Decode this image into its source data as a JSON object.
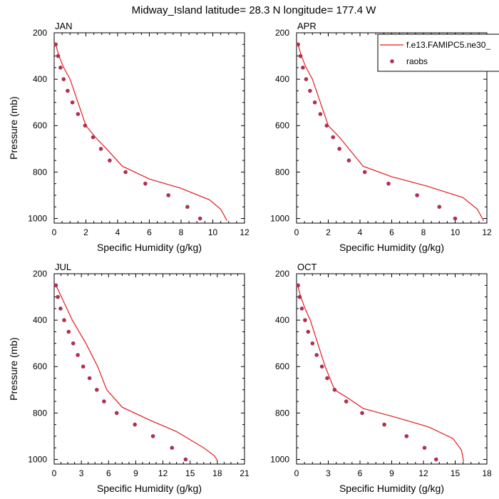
{
  "title": "Midway_Island  latitude= 28.3 N longitude= 177.4 W",
  "legend": {
    "model_label": "f.e13.FAMIPC5.ne30_",
    "obs_label": "raobs",
    "model_color": "#e41a1c",
    "obs_color": "#b03050"
  },
  "chart_data": [
    {
      "type": "line+scatter",
      "title": "JAN",
      "xlabel": "Specific Humidity (g/kg)",
      "ylabel": "Pressure (mb)",
      "xlim": [
        0,
        12
      ],
      "ylim": [
        1020,
        200
      ],
      "xticks": [
        0,
        2,
        4,
        6,
        8,
        10,
        12
      ],
      "yticks": [
        200,
        400,
        600,
        800,
        1000
      ],
      "series": [
        {
          "name": "f.e13.FAMIPC5.ne30_",
          "kind": "line",
          "x": [
            0.1,
            0.3,
            0.6,
            1.0,
            1.5,
            2.0,
            2.6,
            3.3,
            4.3,
            6.0,
            8.0,
            9.8,
            10.5,
            10.9
          ],
          "y": [
            250,
            300,
            350,
            400,
            500,
            600,
            650,
            700,
            775,
            830,
            870,
            920,
            960,
            1010
          ]
        },
        {
          "name": "raobs",
          "kind": "scatter",
          "x": [
            0.1,
            0.25,
            0.4,
            0.6,
            0.85,
            1.15,
            1.5,
            1.95,
            2.45,
            2.95,
            3.5,
            4.5,
            5.75,
            7.2,
            8.4,
            9.2
          ],
          "y": [
            250,
            300,
            350,
            400,
            450,
            500,
            550,
            600,
            650,
            700,
            750,
            800,
            850,
            900,
            950,
            1000
          ]
        }
      ]
    },
    {
      "type": "line+scatter",
      "title": "APR",
      "xlabel": "Specific Humidity (g/kg)",
      "ylabel": "",
      "xlim": [
        0,
        12
      ],
      "ylim": [
        1020,
        200
      ],
      "xticks": [
        0,
        2,
        4,
        6,
        8,
        10,
        12
      ],
      "yticks": [
        200,
        400,
        600,
        800,
        1000
      ],
      "series": [
        {
          "name": "f.e13.FAMIPC5.ne30_",
          "kind": "line",
          "x": [
            0.1,
            0.3,
            0.6,
            1.0,
            1.5,
            2.0,
            2.7,
            3.3,
            4.2,
            6.0,
            8.2,
            10.5,
            11.4,
            11.8
          ],
          "y": [
            250,
            300,
            350,
            400,
            500,
            600,
            650,
            700,
            775,
            820,
            860,
            910,
            960,
            1010
          ]
        },
        {
          "name": "raobs",
          "kind": "scatter",
          "x": [
            0.1,
            0.25,
            0.4,
            0.6,
            0.85,
            1.15,
            1.5,
            1.9,
            2.3,
            2.7,
            3.3,
            4.3,
            5.8,
            7.6,
            9.0,
            10.0
          ],
          "y": [
            250,
            300,
            350,
            400,
            450,
            500,
            550,
            600,
            650,
            700,
            750,
            800,
            850,
            900,
            950,
            1000
          ]
        }
      ]
    },
    {
      "type": "line+scatter",
      "title": "JUL",
      "xlabel": "Specific Humidity (g/kg)",
      "ylabel": "Pressure (mb)",
      "xlim": [
        0,
        21
      ],
      "ylim": [
        1020,
        200
      ],
      "xticks": [
        0,
        3,
        6,
        9,
        12,
        15,
        18,
        21
      ],
      "yticks": [
        200,
        400,
        600,
        800,
        1000
      ],
      "series": [
        {
          "name": "f.e13.FAMIPC5.ne30_",
          "kind": "line",
          "x": [
            0.2,
            0.8,
            2.0,
            3.5,
            4.8,
            5.8,
            7.5,
            10.5,
            13.5,
            16.5,
            17.7,
            18.0
          ],
          "y": [
            250,
            300,
            400,
            500,
            600,
            700,
            775,
            830,
            880,
            950,
            985,
            1005
          ]
        },
        {
          "name": "raobs",
          "kind": "scatter",
          "x": [
            0.2,
            0.4,
            0.7,
            1.1,
            1.6,
            2.1,
            2.6,
            3.2,
            3.9,
            4.7,
            5.5,
            6.9,
            8.9,
            10.9,
            13.0,
            14.5
          ],
          "y": [
            250,
            300,
            350,
            400,
            450,
            500,
            550,
            600,
            650,
            700,
            750,
            800,
            850,
            900,
            950,
            1000
          ]
        }
      ]
    },
    {
      "type": "line+scatter",
      "title": "OCT",
      "xlabel": "Specific Humidity (g/kg)",
      "ylabel": "",
      "xlim": [
        0,
        18
      ],
      "ylim": [
        1020,
        200
      ],
      "xticks": [
        0,
        3,
        6,
        9,
        12,
        15,
        18
      ],
      "yticks": [
        200,
        400,
        600,
        800,
        1000
      ],
      "series": [
        {
          "name": "f.e13.FAMIPC5.ne30_",
          "kind": "line",
          "x": [
            0.1,
            0.4,
            0.8,
            1.3,
            2.0,
            2.7,
            3.6,
            5.0,
            6.3,
            9.5,
            12.5,
            14.8,
            15.6,
            15.8
          ],
          "y": [
            250,
            300,
            350,
            400,
            500,
            600,
            700,
            740,
            780,
            820,
            860,
            910,
            960,
            1010
          ]
        },
        {
          "name": "raobs",
          "kind": "scatter",
          "x": [
            0.15,
            0.3,
            0.5,
            0.8,
            1.1,
            1.5,
            1.9,
            2.4,
            2.9,
            3.6,
            4.7,
            6.2,
            8.3,
            10.4,
            12.1,
            13.2
          ],
          "y": [
            250,
            300,
            350,
            400,
            450,
            500,
            550,
            600,
            650,
            700,
            750,
            800,
            850,
            900,
            950,
            1000
          ]
        }
      ]
    }
  ]
}
